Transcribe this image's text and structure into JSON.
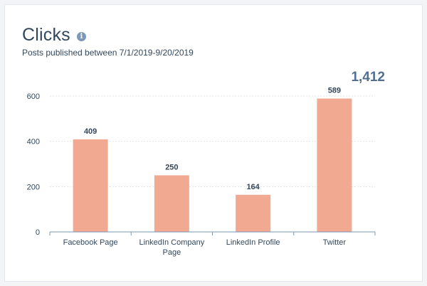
{
  "header": {
    "title": "Clicks",
    "subtitle": "Posts published between 7/1/2019-9/20/2019",
    "total": "1,412",
    "info_icon": "info-icon"
  },
  "colors": {
    "bar": "#f2a992",
    "grid": "#dfe3eb",
    "axis": "#7c98b6",
    "text": "#33475b"
  },
  "chart_data": {
    "type": "bar",
    "title": "Clicks",
    "subtitle": "Posts published between 7/1/2019-9/20/2019",
    "categories": [
      [
        "Facebook Page"
      ],
      [
        "LinkedIn Company",
        "Page"
      ],
      [
        "LinkedIn Profile"
      ],
      [
        "Twitter"
      ]
    ],
    "values": [
      409,
      250,
      164,
      589
    ],
    "value_labels": [
      "409",
      "250",
      "164",
      "589"
    ],
    "yticks": [
      0,
      200,
      400,
      600
    ],
    "ylim": [
      0,
      600
    ],
    "grid": true,
    "legend": "none"
  }
}
